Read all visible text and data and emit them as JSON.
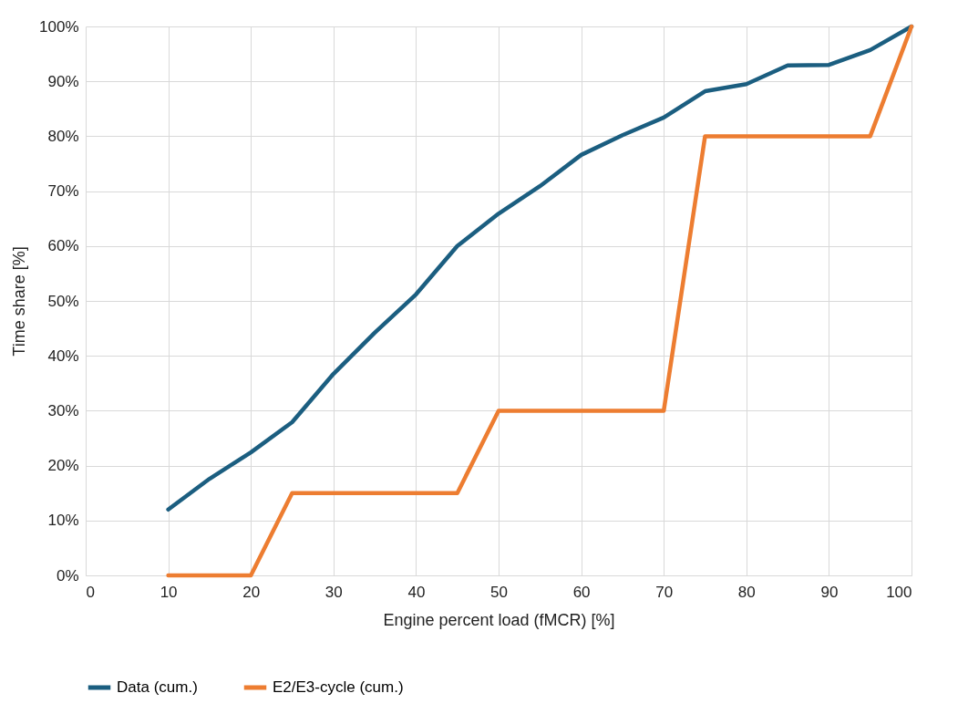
{
  "chart_data": {
    "type": "line",
    "xlabel": "Engine percent load (fMCR) [%]",
    "ylabel": "Time share [%]",
    "x": [
      10,
      15,
      20,
      25,
      30,
      35,
      40,
      45,
      50,
      55,
      60,
      65,
      70,
      75,
      80,
      85,
      90,
      95,
      100
    ],
    "series": [
      {
        "name": "Data (cum.)",
        "color": "#1b5e80",
        "values": [
          12.0,
          17.6,
          22.4,
          27.9,
          36.7,
          44.2,
          51.2,
          60.0,
          65.9,
          70.9,
          76.6,
          80.2,
          83.4,
          88.2,
          89.5,
          92.9,
          93.0,
          95.7,
          100
        ]
      },
      {
        "name": "E2/E3-cycle (cum.)",
        "color": "#ed7d31",
        "values": [
          0,
          0,
          0,
          15,
          15,
          15,
          15,
          15,
          30,
          30,
          30,
          30,
          30,
          80,
          80,
          80,
          80,
          80,
          100
        ]
      }
    ],
    "xlim": [
      0,
      100
    ],
    "xticks": [
      0,
      10,
      20,
      30,
      40,
      50,
      60,
      70,
      80,
      90,
      100
    ],
    "ylim": [
      0,
      100
    ],
    "yticks": [
      {
        "value": 0,
        "label": "0%"
      },
      {
        "value": 10,
        "label": "10%"
      },
      {
        "value": 20,
        "label": "20%"
      },
      {
        "value": 30,
        "label": "30%"
      },
      {
        "value": 40,
        "label": "40%"
      },
      {
        "value": 50,
        "label": "50%"
      },
      {
        "value": 60,
        "label": "60%"
      },
      {
        "value": 70,
        "label": "70%"
      },
      {
        "value": 80,
        "label": "80%"
      },
      {
        "value": 90,
        "label": "90%"
      },
      {
        "value": 100,
        "label": "100%"
      }
    ],
    "grid": true,
    "legend": "bottom",
    "line_style": "solid",
    "marker": "none"
  }
}
